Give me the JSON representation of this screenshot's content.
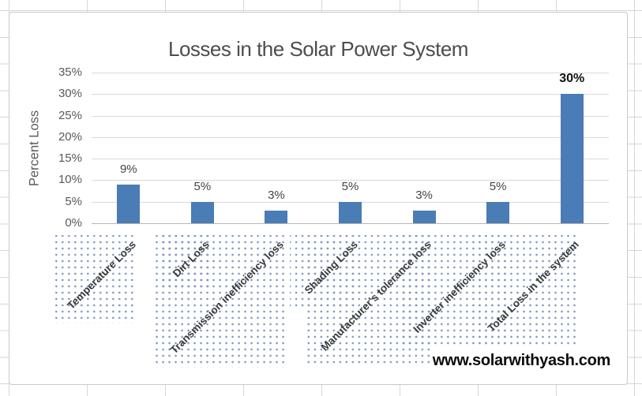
{
  "watermark": "www.solarwithyash.com",
  "chart_data": {
    "type": "bar",
    "title": "Losses in the Solar Power System",
    "xlabel": "",
    "ylabel": "Percent Loss",
    "categories": [
      "Temperature Loss",
      "Dirt Loss",
      "Transmission inefficiency loss",
      "Shading Loss",
      "Manufacturer's tolerance loss",
      "Inverter inefficiency loss",
      "Total Loss in the system"
    ],
    "values": [
      9,
      5,
      3,
      5,
      3,
      5,
      30
    ],
    "value_labels": [
      "9%",
      "5%",
      "3%",
      "5%",
      "3%",
      "5%",
      "30%"
    ],
    "emphasized_label_index": 6,
    "y_ticks": [
      "0%",
      "5%",
      "10%",
      "15%",
      "20%",
      "25%",
      "30%",
      "35%"
    ],
    "y_tick_step": 5,
    "ylim": [
      0,
      35
    ],
    "grid": true,
    "legend": "none",
    "bar_color": "#4a7cb5",
    "gridline_color": "#dadada",
    "axis_line_color": "#b5b5b5",
    "pattern_dot_color": "#7f9ac2",
    "title_color": "#4d4d4d",
    "axis_text_color": "#595959",
    "category_label_color": "#3a3a3a",
    "value_label_color": "#454545",
    "emphasized_label_color": "#111111"
  }
}
